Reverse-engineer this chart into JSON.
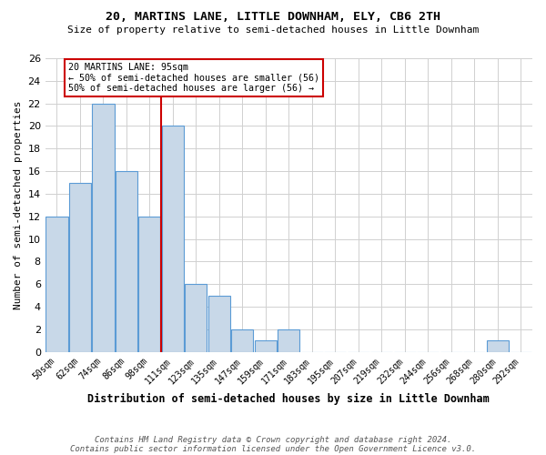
{
  "title1": "20, MARTINS LANE, LITTLE DOWNHAM, ELY, CB6 2TH",
  "title2": "Size of property relative to semi-detached houses in Little Downham",
  "xlabel": "Distribution of semi-detached houses by size in Little Downham",
  "ylabel": "Number of semi-detached properties",
  "footnote1": "Contains HM Land Registry data © Crown copyright and database right 2024.",
  "footnote2": "Contains public sector information licensed under the Open Government Licence v3.0.",
  "bar_labels": [
    "50sqm",
    "62sqm",
    "74sqm",
    "86sqm",
    "98sqm",
    "111sqm",
    "123sqm",
    "135sqm",
    "147sqm",
    "159sqm",
    "171sqm",
    "183sqm",
    "195sqm",
    "207sqm",
    "219sqm",
    "232sqm",
    "244sqm",
    "256sqm",
    "268sqm",
    "280sqm",
    "292sqm"
  ],
  "bar_values": [
    12,
    15,
    22,
    16,
    12,
    20,
    6,
    5,
    2,
    1,
    2,
    0,
    0,
    0,
    0,
    0,
    0,
    0,
    0,
    1,
    0
  ],
  "bar_color": "#c8d8e8",
  "bar_edgecolor": "#5b9bd5",
  "grid_color": "#d0d0d0",
  "background_color": "#ffffff",
  "property_line_x": 4.48,
  "property_line_color": "#cc0000",
  "property_line_label": "20 MARTINS LANE: 95sqm",
  "annotation_smaller": "← 50% of semi-detached houses are smaller (56)",
  "annotation_larger": "50% of semi-detached houses are larger (56) →",
  "annotation_box_color": "#ffffff",
  "annotation_box_edgecolor": "#cc0000",
  "ylim": [
    0,
    26
  ],
  "yticks": [
    0,
    2,
    4,
    6,
    8,
    10,
    12,
    14,
    16,
    18,
    20,
    22,
    24,
    26
  ]
}
